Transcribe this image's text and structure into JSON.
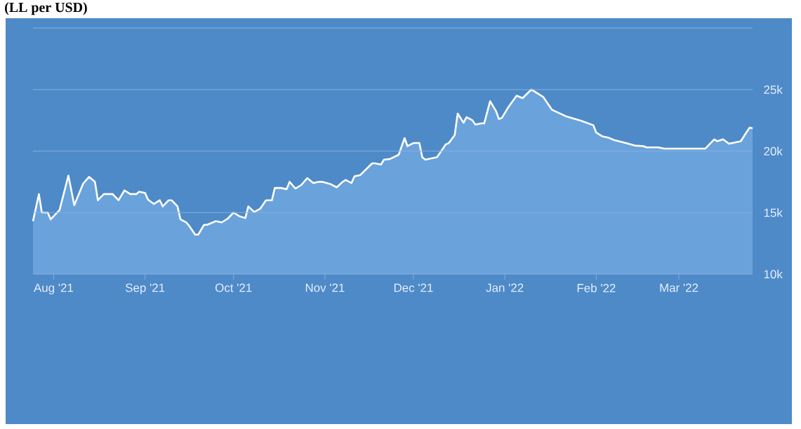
{
  "chart_data": {
    "type": "area",
    "title": "(LL per USD)",
    "xlim": [
      "2021-07-25",
      "2022-03-26"
    ],
    "ylim": [
      10000,
      30000
    ],
    "xticks": [
      {
        "value": "2021-08-01",
        "label": "Aug '21"
      },
      {
        "value": "2021-09-01",
        "label": "Sep '21"
      },
      {
        "value": "2021-10-01",
        "label": "Oct '21"
      },
      {
        "value": "2021-11-01",
        "label": "Nov '21"
      },
      {
        "value": "2021-12-01",
        "label": "Dec '21"
      },
      {
        "value": "2022-01-01",
        "label": "Jan '22"
      },
      {
        "value": "2022-02-01",
        "label": "Feb '22"
      },
      {
        "value": "2022-03-01",
        "label": "Mar '22"
      }
    ],
    "yticks": [
      {
        "value": 10000,
        "label": "10k"
      },
      {
        "value": 15000,
        "label": "15k"
      },
      {
        "value": 20000,
        "label": "20k"
      },
      {
        "value": 25000,
        "label": "25k"
      },
      {
        "value": 30000,
        "label": null
      }
    ],
    "grid": "y",
    "marker": "none",
    "x": [
      "2021-07-25",
      "2021-07-27",
      "2021-07-28",
      "2021-07-30",
      "2021-07-31",
      "2021-08-03",
      "2021-08-06",
      "2021-08-08",
      "2021-08-11",
      "2021-08-13",
      "2021-08-15",
      "2021-08-16",
      "2021-08-18",
      "2021-08-21",
      "2021-08-23",
      "2021-08-25",
      "2021-08-27",
      "2021-08-29",
      "2021-08-30",
      "2021-09-01",
      "2021-09-02",
      "2021-09-04",
      "2021-09-06",
      "2021-09-07",
      "2021-09-09",
      "2021-09-10",
      "2021-09-12",
      "2021-09-13",
      "2021-09-15",
      "2021-09-16",
      "2021-09-18",
      "2021-09-19",
      "2021-09-21",
      "2021-09-22",
      "2021-09-24",
      "2021-09-25",
      "2021-09-27",
      "2021-09-29",
      "2021-10-01",
      "2021-10-03",
      "2021-10-05",
      "2021-10-06",
      "2021-10-08",
      "2021-10-10",
      "2021-10-12",
      "2021-10-14",
      "2021-10-15",
      "2021-10-17",
      "2021-10-19",
      "2021-10-20",
      "2021-10-22",
      "2021-10-24",
      "2021-10-26",
      "2021-10-28",
      "2021-10-30",
      "2021-10-31",
      "2021-11-03",
      "2021-11-05",
      "2021-11-07",
      "2021-11-08",
      "2021-11-10",
      "2021-11-11",
      "2021-11-13",
      "2021-11-17",
      "2021-11-18",
      "2021-11-20",
      "2021-11-21",
      "2021-11-23",
      "2021-11-26",
      "2021-11-28",
      "2021-11-29",
      "2021-12-01",
      "2021-12-03",
      "2021-12-04",
      "2021-12-05",
      "2021-12-09",
      "2021-12-10",
      "2021-12-12",
      "2021-12-13",
      "2021-12-15",
      "2021-12-16",
      "2021-12-18",
      "2021-12-19",
      "2021-12-21",
      "2021-12-22",
      "2021-12-24",
      "2021-12-25",
      "2021-12-27",
      "2021-12-29",
      "2021-12-30",
      "2021-12-31",
      "2022-01-02",
      "2022-01-05",
      "2022-01-07",
      "2022-01-10",
      "2022-01-14",
      "2022-01-17",
      "2022-01-22",
      "2022-01-27",
      "2022-01-31",
      "2022-02-01",
      "2022-02-03",
      "2022-02-05",
      "2022-02-07",
      "2022-02-11",
      "2022-02-14",
      "2022-02-17",
      "2022-02-18",
      "2022-02-22",
      "2022-02-24",
      "2022-03-10",
      "2022-03-13",
      "2022-03-14",
      "2022-03-16",
      "2022-03-18",
      "2022-03-22",
      "2022-03-24",
      "2022-03-25",
      "2022-03-26"
    ],
    "series": [
      {
        "color": "#ffffff",
        "values": [
          14300,
          16500,
          15000,
          15000,
          14450,
          15200,
          18000,
          15600,
          17350,
          17900,
          17500,
          16000,
          16500,
          16500,
          16000,
          16800,
          16500,
          16500,
          16700,
          16600,
          16050,
          15700,
          16000,
          15500,
          16000,
          16000,
          15500,
          14450,
          14200,
          13900,
          13200,
          13200,
          14000,
          14000,
          14200,
          14300,
          14200,
          14500,
          15000,
          14700,
          14550,
          15500,
          15050,
          15300,
          16000,
          16000,
          17000,
          17000,
          16900,
          17500,
          16950,
          17250,
          17800,
          17400,
          17500,
          17500,
          17300,
          17050,
          17500,
          17650,
          17400,
          17950,
          18050,
          19000,
          19000,
          18900,
          19300,
          19350,
          19700,
          21050,
          20400,
          20650,
          20650,
          19500,
          19300,
          19500,
          19850,
          20550,
          20650,
          21300,
          23050,
          22300,
          22750,
          22500,
          22150,
          22250,
          22250,
          24050,
          23250,
          22600,
          22700,
          23500,
          24500,
          24300,
          25000,
          24400,
          23350,
          22800,
          22450,
          22100,
          21500,
          21200,
          21100,
          20900,
          20650,
          20450,
          20400,
          20300,
          20300,
          20200,
          20200,
          20950,
          20800,
          20950,
          20600,
          20800,
          21550,
          21900,
          21850
        ]
      }
    ]
  }
}
